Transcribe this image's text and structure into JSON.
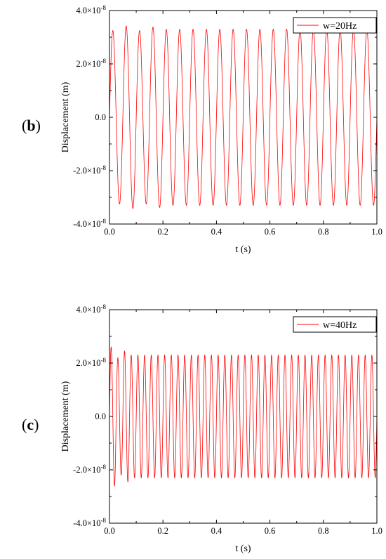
{
  "chart_data": [
    {
      "type": "line",
      "panel_label": {
        "open": "(",
        "letter": "b",
        "close": ")"
      },
      "xlabel": "t (s)",
      "ylabel": "Displacement (m)",
      "xlim": [
        0.0,
        1.0
      ],
      "ylim": [
        -4e-08,
        4e-08
      ],
      "x_ticks": [
        {
          "value": 0.0,
          "label": "0.0"
        },
        {
          "value": 0.2,
          "label": "0.2"
        },
        {
          "value": 0.4,
          "label": "0.4"
        },
        {
          "value": 0.6,
          "label": "0.6"
        },
        {
          "value": 0.8,
          "label": "0.8"
        },
        {
          "value": 1.0,
          "label": "1.0"
        }
      ],
      "y_ticks": [
        {
          "value": 4e-08,
          "mantissa": "4.0×10",
          "exp": "-8",
          "label": ""
        },
        {
          "value": 2e-08,
          "mantissa": "2.0×10",
          "exp": "-8",
          "label": ""
        },
        {
          "value": 0,
          "mantissa": "",
          "exp": "",
          "label": "0.0"
        },
        {
          "value": -2e-08,
          "mantissa": "-2.0×10",
          "exp": "-8",
          "label": ""
        },
        {
          "value": -4e-08,
          "mantissa": "-4.0×10",
          "exp": "-8",
          "label": ""
        }
      ],
      "legend": "top-right",
      "grid": false,
      "series": [
        {
          "name": "w=20Hz",
          "color": "#ff0000",
          "frequency_hz": 20,
          "amplitude_m": 3.3e-08,
          "first_peaks_m": [
            3.25e-08,
            3.42e-08,
            3.25e-08,
            3.38e-08
          ]
        }
      ]
    },
    {
      "type": "line",
      "panel_label": {
        "open": "(",
        "letter": "c",
        "close": ")"
      },
      "xlabel": "t (s)",
      "ylabel": "Displacement (m)",
      "xlim": [
        0.0,
        1.0
      ],
      "ylim": [
        -4e-08,
        4e-08
      ],
      "x_ticks": [
        {
          "value": 0.0,
          "label": "0.0"
        },
        {
          "value": 0.2,
          "label": "0.2"
        },
        {
          "value": 0.4,
          "label": "0.4"
        },
        {
          "value": 0.6,
          "label": "0.6"
        },
        {
          "value": 0.8,
          "label": "0.8"
        },
        {
          "value": 1.0,
          "label": "1.0"
        }
      ],
      "y_ticks": [
        {
          "value": 4e-08,
          "mantissa": "4.0×10",
          "exp": "-8",
          "label": ""
        },
        {
          "value": 2e-08,
          "mantissa": "2.0×10",
          "exp": "-8",
          "label": ""
        },
        {
          "value": 0,
          "mantissa": "",
          "exp": "",
          "label": "0.0"
        },
        {
          "value": -2e-08,
          "mantissa": "-2.0×10",
          "exp": "-8",
          "label": ""
        },
        {
          "value": -4e-08,
          "mantissa": "-4.0×10",
          "exp": "-8",
          "label": ""
        }
      ],
      "legend": "top-right",
      "grid": false,
      "series": [
        {
          "name": "w=40Hz",
          "color": "#ff0000",
          "frequency_hz": 40,
          "amplitude_m": 2.3e-08,
          "first_peaks_m": [
            2.6e-08,
            2.2e-08,
            2.45e-08,
            2.3e-08
          ]
        }
      ]
    }
  ]
}
